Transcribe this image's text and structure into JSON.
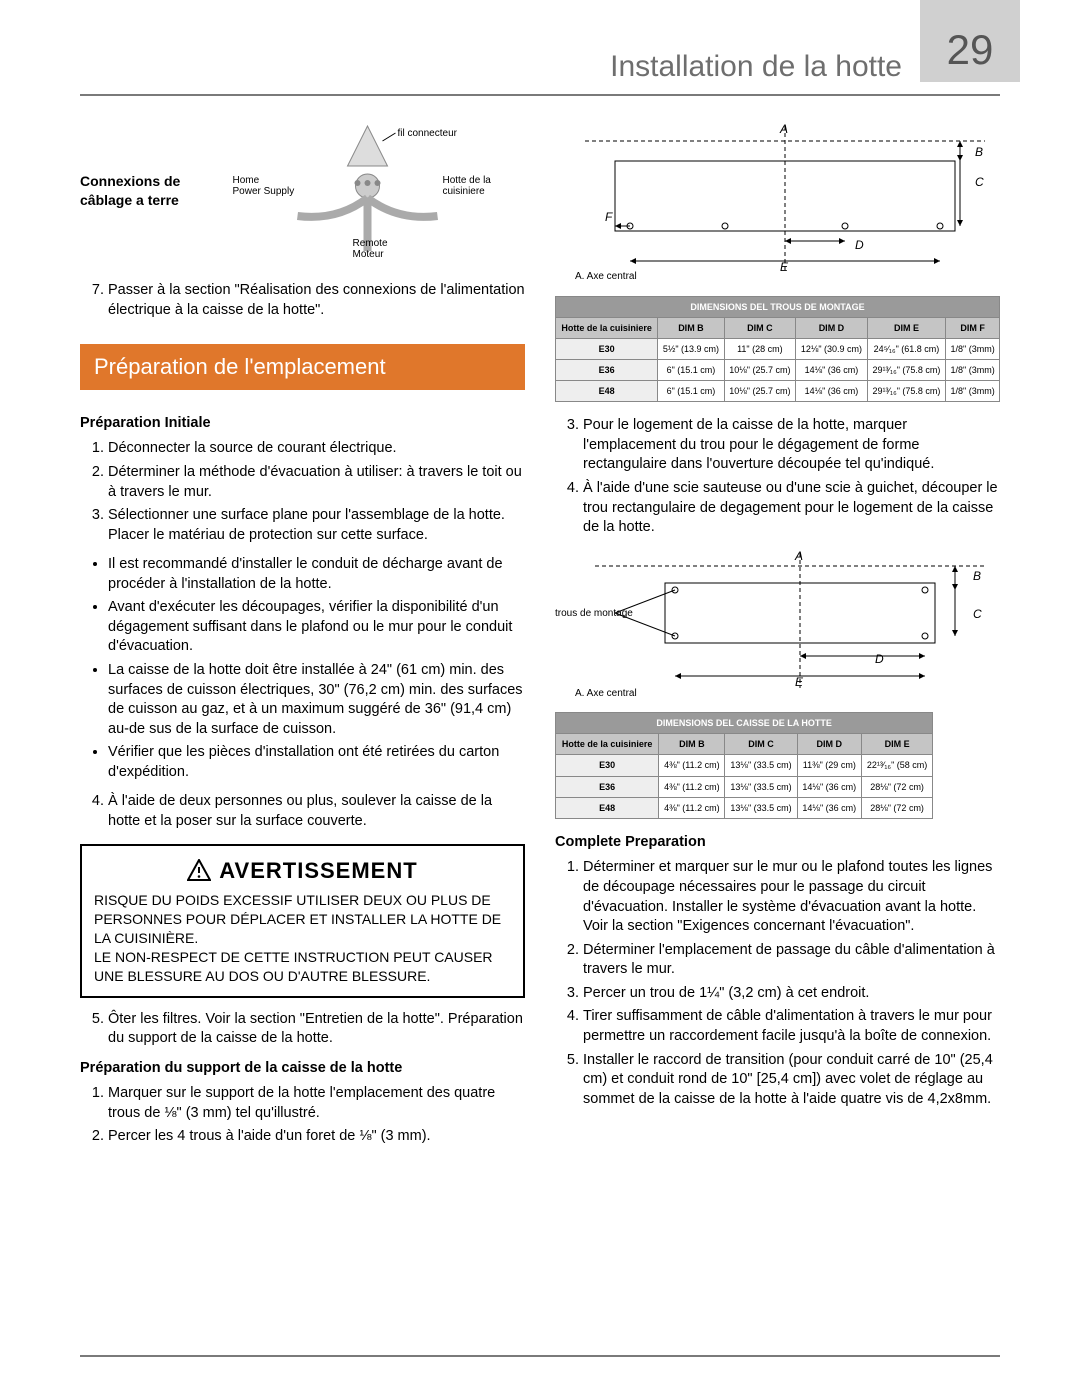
{
  "header": {
    "title": "Installation de la hotte",
    "page_number": "29"
  },
  "wiring": {
    "section_label": "Connexions de câblage a terre",
    "fil_connecteur": "fil connecteur",
    "home_psu": "Home\nPower Supply",
    "hotte": "Hotte de la\ncuisiniere",
    "remote_motor": "Remote\nMoteur"
  },
  "left": {
    "step7": "Passer à la section \"Réalisation des connexions de l'alimentation électrique à la caisse de la hotte\".",
    "band": "Préparation de l'emplacement",
    "prep_title": "Préparation Initiale",
    "list1": [
      "Déconnecter la source de courant électrique.",
      "Déterminer la méthode d'évacuation à utiliser: à travers le toit ou à travers le mur.",
      "Sélectionner une surface plane pour l'assemblage de la hotte. Placer le matériau de protection sur cette surface."
    ],
    "bullets": [
      "Il est recommandé d'installer le conduit de décharge avant de procéder à l'installation de la hotte.",
      "Avant d'exécuter les découpages, vérifier la disponibilité d'un dégagement suffisant dans le plafond ou le mur pour le conduit d'évacuation.",
      "La caisse de la hotte doit être installée à 24\" (61 cm) min. des surfaces de cuisson électriques, 30\" (76,2 cm) min. des surfaces de cuisson au gaz, et à un maximum suggéré de 36\" (91,4 cm) au-de sus de la surface de cuisson.",
      "Vérifier que les pièces d'installation ont été retirées du carton d'expédition."
    ],
    "step4": "À l'aide de deux personnes ou plus, soulever la caisse de la hotte et la poser sur la surface couverte.",
    "warn_title": "AVERTISSEMENT",
    "warn_body": "RISQUE DU POIDS EXCESSIF UTILISER DEUX OU PLUS DE PERSONNES POUR DÉPLACER ET INSTALLER LA HOTTE DE LA CUISINIÈRE.\nLE NON-RESPECT DE CETTE INSTRUCTION PEUT CAUSER UNE BLESSURE AU DOS OU D'AUTRE BLESSURE.",
    "step5": "Ôter les filtres. Voir la section \"Entretien de la hotte\". Préparation du support de la caisse de la hotte.",
    "support_title": "Préparation du support de la caisse de la hotte",
    "support_list": [
      "Marquer sur le support de la hotte l'emplacement des quatre trous de ⅛\" (3 mm) tel qu'illustré.",
      "Percer les 4 trous à l'aide d'un foret de ⅛\" (3 mm)."
    ]
  },
  "right": {
    "diagram1": {
      "labels": {
        "A": "A",
        "B": "B",
        "C": "C",
        "D": "D",
        "E": "E",
        "F": "F"
      },
      "axe": "A. Axe central"
    },
    "table1": {
      "title": "DIMENSIONS DEL TROUS DE MONTAGE",
      "cols": [
        "Hotte de la cuisiniere",
        "DIM B",
        "DIM C",
        "DIM D",
        "DIM E",
        "DIM F"
      ],
      "rows": [
        [
          "E30",
          "5½\" (13.9 cm)",
          "11\" (28 cm)",
          "12⅛\" (30.9 cm)",
          "24⁵⁄₁₆\" (61.8 cm)",
          "1/8\" (3mm)"
        ],
        [
          "E36",
          "6\" (15.1 cm)",
          "10⅛\" (25.7 cm)",
          "14⅛\" (36 cm)",
          "29¹³⁄₁₆\" (75.8 cm)",
          "1/8\" (3mm)"
        ],
        [
          "E48",
          "6\" (15.1 cm)",
          "10⅛\" (25.7 cm)",
          "14⅛\" (36 cm)",
          "29¹³⁄₁₆\" (75.8 cm)",
          "1/8\" (3mm)"
        ]
      ]
    },
    "steps_a": [
      "Pour le logement de la caisse de la hotte, marquer l'emplacement du trou pour le dégagement de forme rectangulaire dans l'ouverture découpée tel qu'indiqué.",
      "À l'aide d'une scie sauteuse ou d'une scie à guichet, découper le trou rectangulaire de degagement pour le logement de la caisse de la hotte."
    ],
    "diagram2": {
      "trous": "trous de montage",
      "axe": "A. Axe central"
    },
    "table2": {
      "title": "DIMENSIONS DEL CAISSE DE LA HOTTE",
      "cols": [
        "Hotte de la cuisiniere",
        "DIM B",
        "DIM C",
        "DIM D",
        "DIM E"
      ],
      "rows": [
        [
          "E30",
          "4⅜\" (11.2 cm)",
          "13⅛\" (33.5 cm)",
          "11⅜\" (29 cm)",
          "22¹³⁄₁₆\" (58 cm)"
        ],
        [
          "E36",
          "4⅜\" (11.2 cm)",
          "13⅛\" (33.5 cm)",
          "14⅛\" (36 cm)",
          "28⅛\" (72 cm)"
        ],
        [
          "E48",
          "4⅜\" (11.2 cm)",
          "13⅛\" (33.5 cm)",
          "14⅛\" (36 cm)",
          "28⅛\" (72 cm)"
        ]
      ]
    },
    "complete_title": "Complete Preparation",
    "complete_list": [
      "Déterminer et marquer sur le mur ou le plafond toutes les lignes de découpage nécessaires pour le passage du circuit d'évacuation. Installer le système d'évacuation avant la hotte.\nVoir la section \"Exigences concernant l'évacuation\".",
      "Déterminer l'emplacement de passage du câble d'alimentation à travers le mur.",
      "Percer un trou de 1¼\" (3,2 cm) à cet endroit.",
      "Tirer suffisamment de câble d'alimentation à travers le mur pour permettre un raccordement facile jusqu'à la boîte de connexion.",
      "Installer le raccord de transition (pour conduit carré de 10\" (25,4 cm) et conduit rond de 10\" [25,4 cm]) avec volet de réglage au sommet de la caisse de la hotte à l'aide quatre vis de 4,2x8mm."
    ]
  }
}
